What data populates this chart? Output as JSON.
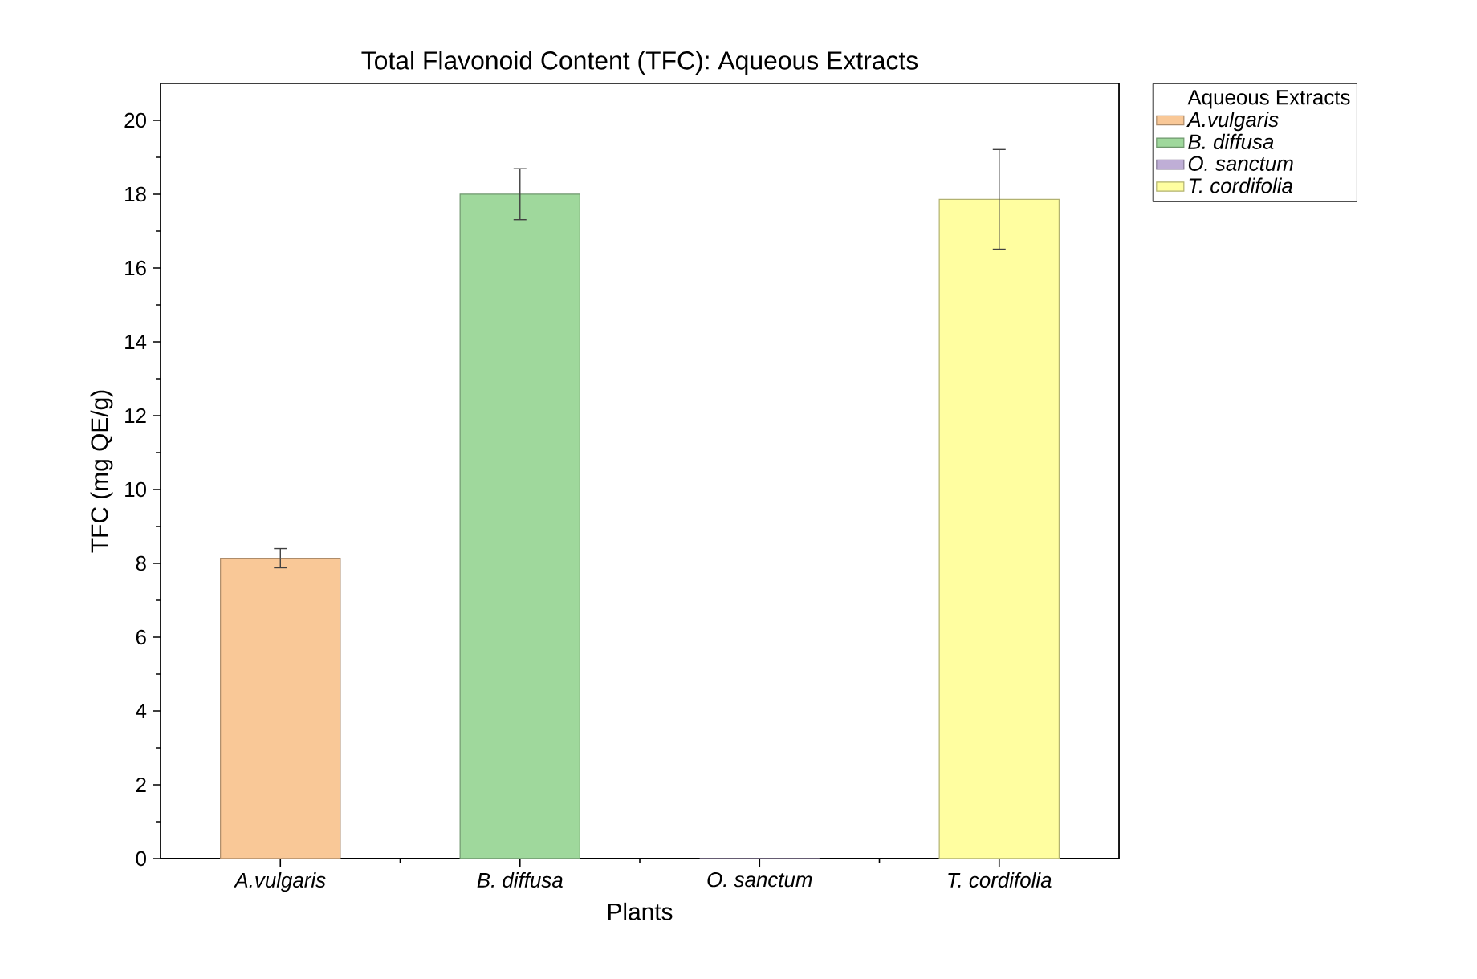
{
  "chart_data": {
    "type": "bar",
    "title": "Total Flavonoid Content (TFC): Aqueous Extracts",
    "xlabel": "Plants",
    "ylabel": "TFC (mg QE/g)",
    "legend_title": "Aqueous Extracts",
    "categories": [
      "A.vulgaris",
      "B. diffusa",
      "O. sanctum",
      "T. cordifolia"
    ],
    "series": [
      {
        "name": "A.vulgaris",
        "color": "#f9c897",
        "values": [
          8.14,
          null,
          null,
          null
        ],
        "errors": [
          0.26,
          null,
          null,
          null
        ]
      },
      {
        "name": "B. diffusa",
        "color": "#9fd89c",
        "values": [
          null,
          18.0,
          null,
          null
        ],
        "errors": [
          null,
          0.69,
          null,
          null
        ]
      },
      {
        "name": "O. sanctum",
        "color": "#bfaed6",
        "values": [
          null,
          null,
          0,
          null
        ],
        "errors": [
          null,
          null,
          null,
          null
        ]
      },
      {
        "name": "T. cordifolia",
        "color": "#fffea0",
        "values": [
          null,
          null,
          null,
          17.86
        ],
        "errors": [
          null,
          null,
          null,
          1.35
        ]
      }
    ],
    "ylim": [
      0,
      21
    ],
    "yticks": [
      0,
      2,
      4,
      6,
      8,
      10,
      12,
      14,
      16,
      18,
      20
    ],
    "legend": "right"
  }
}
